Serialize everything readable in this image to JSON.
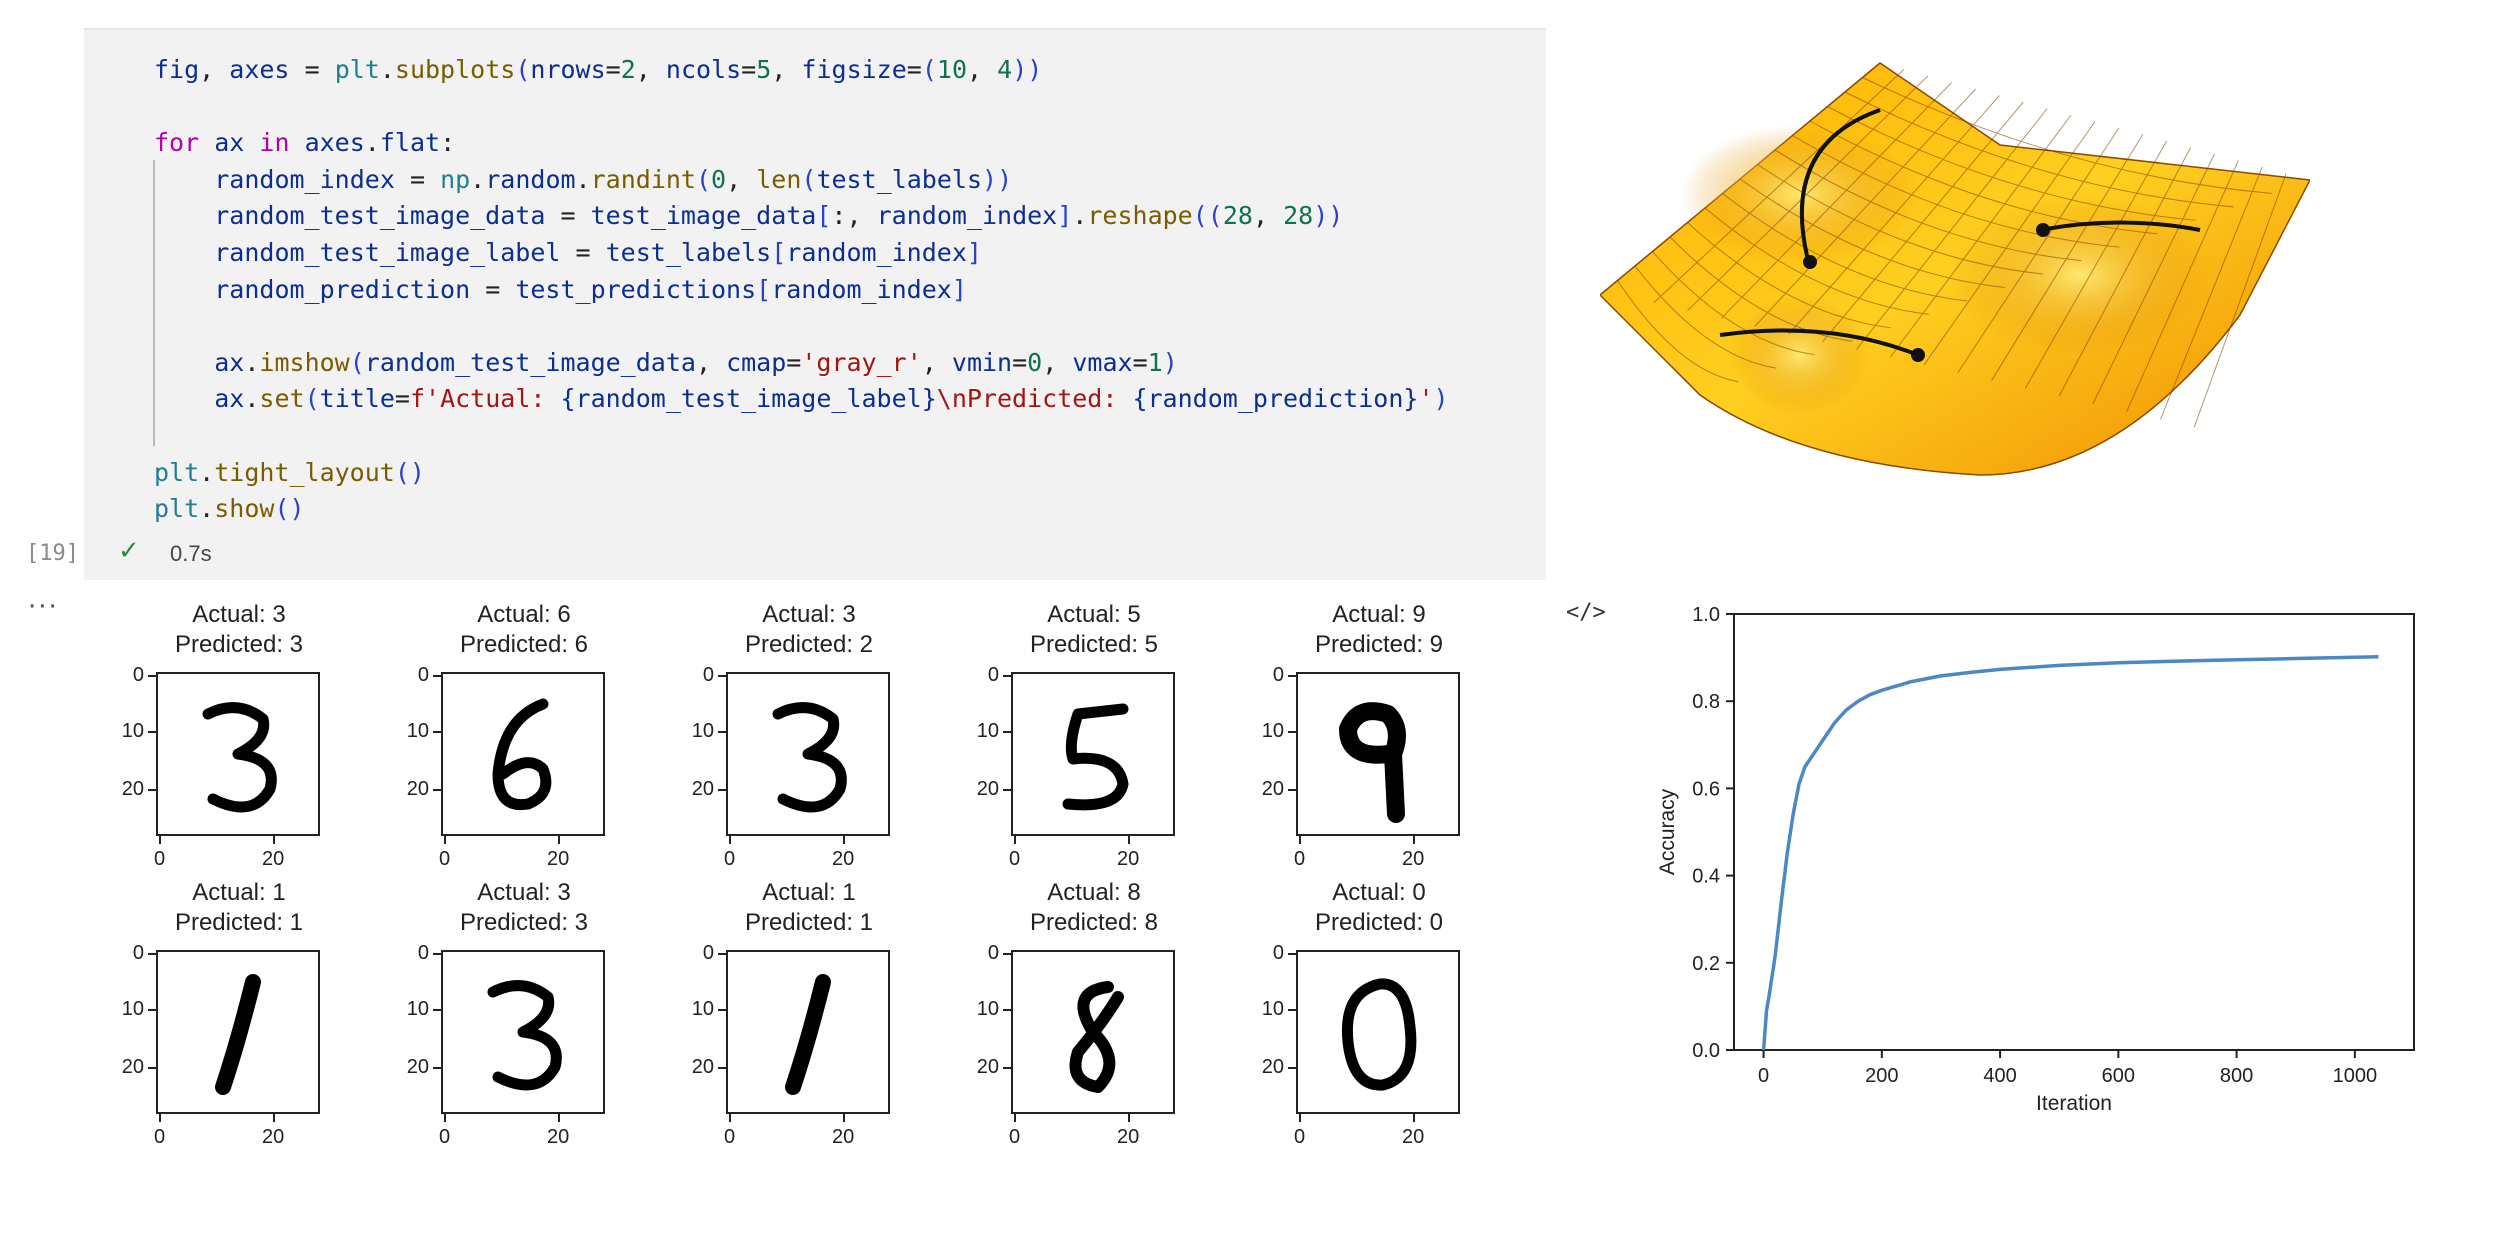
{
  "code_cell": {
    "lines": [
      "fig, axes = plt.subplots(nrows=2, ncols=5, figsize=(10, 4))",
      "",
      "for ax in axes.flat:",
      "    random_index = np.random.randint(0, len(test_labels))",
      "    random_test_image_data = test_image_data[:, random_index].reshape((28, 28))",
      "    random_test_image_label = test_labels[random_index]",
      "    random_prediction = test_predictions[random_index]",
      "",
      "    ax.imshow(random_test_image_data, cmap='gray_r', vmin=0, vmax=1)",
      "    ax.set(title=f'Actual: {random_test_image_label}\\nPredicted: {random_prediction}')",
      "",
      "plt.tight_layout()",
      "plt.show()"
    ],
    "execution_count": "[19]",
    "status_icon": "check-icon",
    "elapsed": "0.7s",
    "output_menu": "···",
    "code_toggle": "</>"
  },
  "mnist_panels": [
    {
      "actual": "Actual: 3",
      "predicted": "Predicted: 3",
      "digit": "3"
    },
    {
      "actual": "Actual: 6",
      "predicted": "Predicted: 6",
      "digit": "6"
    },
    {
      "actual": "Actual: 3",
      "predicted": "Predicted: 2",
      "digit": "3"
    },
    {
      "actual": "Actual: 5",
      "predicted": "Predicted: 5",
      "digit": "5"
    },
    {
      "actual": "Actual: 9",
      "predicted": "Predicted: 9",
      "digit": "9"
    },
    {
      "actual": "Actual: 1",
      "predicted": "Predicted: 1",
      "digit": "1"
    },
    {
      "actual": "Actual: 3",
      "predicted": "Predicted: 3",
      "digit": "3"
    },
    {
      "actual": "Actual: 1",
      "predicted": "Predicted: 1",
      "digit": "1"
    },
    {
      "actual": "Actual: 8",
      "predicted": "Predicted: 8",
      "digit": "8"
    },
    {
      "actual": "Actual: 0",
      "predicted": "Predicted: 0",
      "digit": "0"
    }
  ],
  "mnist_axes": {
    "yticks": [
      "0",
      "10",
      "20"
    ],
    "xticks": [
      "0",
      "20"
    ]
  },
  "colors": {
    "surface_light": "#ffd21a",
    "surface_dark": "#e08a00",
    "line": "#4a89c4",
    "code_bg": "#f2f2f2"
  },
  "chart_data": {
    "type": "line",
    "xlabel": "Iteration",
    "ylabel": "Accuracy",
    "xlim": [
      -50,
      1100
    ],
    "ylim": [
      0.0,
      1.0
    ],
    "xticks": [
      0,
      200,
      400,
      600,
      800,
      1000
    ],
    "yticks": [
      0.0,
      0.2,
      0.4,
      0.6,
      0.8,
      1.0
    ],
    "x": [
      0,
      5,
      10,
      20,
      30,
      40,
      50,
      60,
      70,
      80,
      90,
      100,
      120,
      140,
      160,
      180,
      200,
      250,
      300,
      350,
      400,
      500,
      600,
      700,
      800,
      900,
      1000,
      1040
    ],
    "y": [
      0.0,
      0.09,
      0.13,
      0.22,
      0.34,
      0.45,
      0.54,
      0.61,
      0.65,
      0.67,
      0.69,
      0.71,
      0.75,
      0.78,
      0.8,
      0.815,
      0.825,
      0.845,
      0.858,
      0.866,
      0.873,
      0.882,
      0.888,
      0.892,
      0.895,
      0.898,
      0.901,
      0.902
    ],
    "grid": false
  }
}
